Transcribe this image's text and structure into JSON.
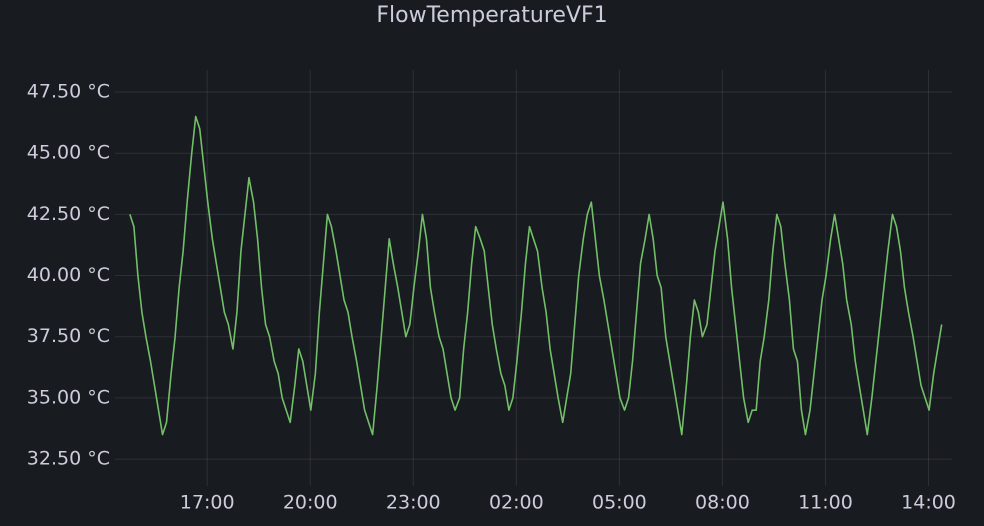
{
  "chart_data": {
    "type": "line",
    "title": "FlowTemperatureVF1",
    "x": [
      "14:45",
      "14:52",
      "14:59",
      "15:06",
      "15:13",
      "15:21",
      "15:28",
      "15:35",
      "15:42",
      "15:49",
      "15:57",
      "16:04",
      "16:11",
      "16:18",
      "16:25",
      "16:33",
      "16:40",
      "16:47",
      "16:54",
      "17:01",
      "17:09",
      "17:16",
      "17:23",
      "17:30",
      "17:37",
      "17:45",
      "17:52",
      "17:59",
      "18:06",
      "18:13",
      "18:21",
      "18:28",
      "18:35",
      "18:42",
      "18:49",
      "18:57",
      "19:04",
      "19:11",
      "19:18",
      "19:25",
      "19:33",
      "19:40",
      "19:47",
      "19:54",
      "20:01",
      "20:09",
      "20:16",
      "20:23",
      "20:30",
      "20:37",
      "20:45",
      "20:52",
      "20:59",
      "21:06",
      "21:13",
      "21:21",
      "21:28",
      "21:35",
      "21:42",
      "21:49",
      "21:57",
      "22:04",
      "22:11",
      "22:18",
      "22:25",
      "22:33",
      "22:40",
      "22:47",
      "22:54",
      "23:01",
      "23:09",
      "23:16",
      "23:23",
      "23:30",
      "23:37",
      "23:45",
      "23:52",
      "23:59",
      "00:06",
      "00:13",
      "00:21",
      "00:28",
      "00:35",
      "00:42",
      "00:49",
      "00:57",
      "01:04",
      "01:11",
      "01:18",
      "01:25",
      "01:33",
      "01:40",
      "01:47",
      "01:54",
      "02:01",
      "02:09",
      "02:16",
      "02:23",
      "02:30",
      "02:37",
      "02:45",
      "02:52",
      "02:59",
      "03:06",
      "03:13",
      "03:21",
      "03:28",
      "03:35",
      "03:42",
      "03:49",
      "03:57",
      "04:04",
      "04:11",
      "04:18",
      "04:25",
      "04:33",
      "04:40",
      "04:47",
      "04:54",
      "05:01",
      "05:09",
      "05:16",
      "05:23",
      "05:30",
      "05:37",
      "05:45",
      "05:52",
      "05:59",
      "06:06",
      "06:13",
      "06:21",
      "06:28",
      "06:35",
      "06:42",
      "06:49",
      "06:57",
      "07:04",
      "07:11",
      "07:18",
      "07:25",
      "07:33",
      "07:40",
      "07:47",
      "07:54",
      "08:01",
      "08:09",
      "08:16",
      "08:23",
      "08:30",
      "08:37",
      "08:45",
      "08:52",
      "08:59",
      "09:06",
      "09:13",
      "09:21",
      "09:28",
      "09:35",
      "09:42",
      "09:49",
      "09:57",
      "10:04",
      "10:11",
      "10:18",
      "10:25",
      "10:33",
      "10:40",
      "10:47",
      "10:54",
      "11:01",
      "11:09",
      "11:16",
      "11:23",
      "11:30",
      "11:37",
      "11:45",
      "11:52",
      "11:59",
      "12:06",
      "12:13",
      "12:21",
      "12:28",
      "12:35",
      "12:42",
      "12:49",
      "12:57",
      "13:04",
      "13:11",
      "13:18",
      "13:25",
      "13:33",
      "13:40",
      "13:47",
      "13:54",
      "14:01",
      "14:09",
      "14:16",
      "14:23"
    ],
    "series": [
      {
        "name": "FlowTemperatureVF1",
        "color": "#73bf69",
        "values": [
          42.5,
          42.0,
          40.0,
          38.5,
          37.5,
          36.5,
          35.5,
          34.5,
          33.5,
          34.0,
          36.0,
          37.5,
          39.5,
          41.0,
          43.0,
          45.0,
          46.5,
          46.0,
          44.5,
          43.0,
          41.5,
          40.5,
          39.5,
          38.5,
          38.0,
          37.0,
          38.5,
          41.0,
          42.5,
          44.0,
          43.0,
          41.5,
          39.5,
          38.0,
          37.5,
          36.5,
          36.0,
          35.0,
          34.5,
          34.0,
          35.5,
          37.0,
          36.5,
          35.5,
          34.5,
          36.0,
          38.5,
          40.5,
          42.5,
          42.0,
          41.0,
          40.0,
          39.0,
          38.5,
          37.5,
          36.5,
          35.5,
          34.5,
          34.0,
          33.5,
          35.5,
          37.5,
          39.5,
          41.5,
          40.5,
          39.5,
          38.5,
          37.5,
          38.0,
          39.5,
          41.0,
          42.5,
          41.5,
          39.5,
          38.5,
          37.5,
          37.0,
          36.0,
          35.0,
          34.5,
          35.0,
          37.0,
          38.5,
          40.5,
          42.0,
          41.5,
          41.0,
          39.5,
          38.0,
          37.0,
          36.0,
          35.5,
          34.5,
          35.0,
          36.5,
          38.5,
          40.5,
          42.0,
          41.5,
          41.0,
          39.5,
          38.5,
          37.0,
          36.0,
          35.0,
          34.0,
          35.0,
          36.0,
          38.0,
          40.0,
          41.5,
          42.5,
          43.0,
          41.5,
          40.0,
          39.0,
          38.0,
          37.0,
          36.0,
          35.0,
          34.5,
          35.0,
          36.5,
          38.5,
          40.5,
          41.5,
          42.5,
          41.5,
          40.0,
          39.5,
          37.5,
          36.5,
          35.5,
          34.5,
          33.5,
          35.5,
          37.5,
          39.0,
          38.5,
          37.5,
          38.0,
          39.5,
          41.0,
          42.0,
          43.0,
          41.5,
          39.5,
          38.0,
          36.5,
          35.0,
          34.0,
          34.5,
          34.5,
          36.5,
          37.5,
          39.0,
          41.0,
          42.5,
          42.0,
          40.5,
          39.0,
          37.0,
          36.5,
          34.5,
          33.5,
          34.5,
          36.0,
          37.5,
          39.0,
          40.0,
          41.5,
          42.5,
          41.5,
          40.5,
          39.0,
          38.0,
          36.5,
          35.5,
          34.5,
          33.5,
          35.0,
          36.5,
          38.0,
          39.5,
          41.0,
          42.5,
          42.0,
          41.0,
          39.5,
          38.5,
          37.5,
          36.5,
          35.5,
          35.0,
          34.5,
          36.0,
          37.0,
          38.0
        ]
      }
    ],
    "xlim": [
      "14:19",
      "14:41"
    ],
    "xticks": [
      "17:00",
      "20:00",
      "23:00",
      "02:00",
      "05:00",
      "08:00",
      "11:00",
      "14:00"
    ],
    "ylim": [
      31.4,
      48.4
    ],
    "yticks": [
      {
        "value": 32.5,
        "label": "32.50 °C"
      },
      {
        "value": 35,
        "label": "35.00 °C"
      },
      {
        "value": 37.5,
        "label": "37.50 °C"
      },
      {
        "value": 40,
        "label": "40.00 °C"
      },
      {
        "value": 42.5,
        "label": "42.50 °C"
      },
      {
        "value": 45,
        "label": "45.00 °C"
      },
      {
        "value": 47.5,
        "label": "47.50 °C"
      }
    ],
    "grid": true
  }
}
